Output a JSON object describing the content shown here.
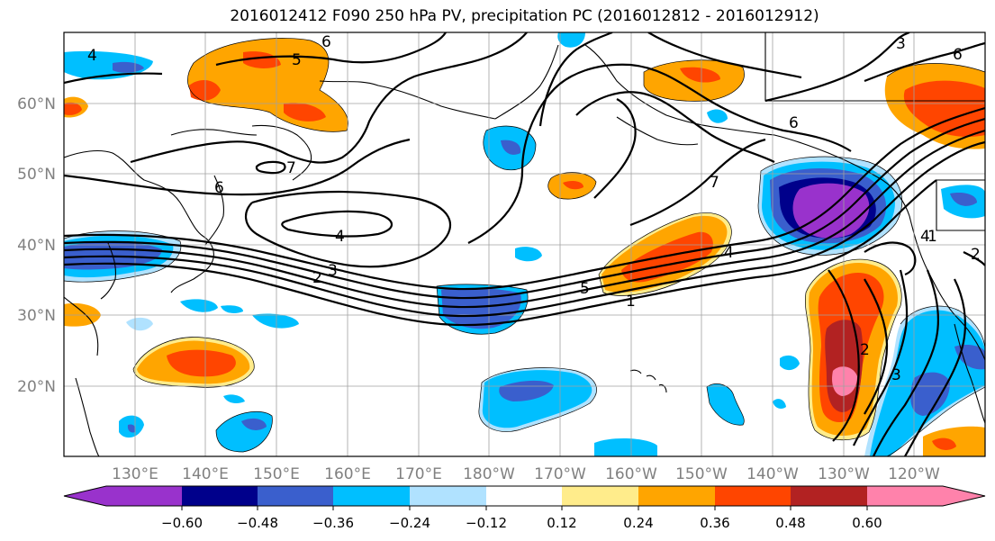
{
  "title": "2016012412 F090 250 hPa PV, precipitation PC (2016012812 - 2016012912)",
  "lat_labels": [
    "60°N",
    "50°N",
    "40°N",
    "30°N",
    "20°N"
  ],
  "lon_labels": [
    "130°E",
    "140°E",
    "150°E",
    "160°E",
    "170°E",
    "180°W",
    "170°W",
    "160°W",
    "150°W",
    "140°W",
    "130°W",
    "120°W"
  ],
  "contour_labels": [
    "4",
    "6",
    "5",
    "6",
    "7",
    "6",
    "4",
    "3",
    "2",
    "5",
    "4",
    "1",
    "7",
    "6",
    "3",
    "4",
    "2",
    "1",
    "2",
    "3"
  ],
  "colorbar": {
    "ticks": [
      "−0.60",
      "−0.48",
      "−0.36",
      "−0.24",
      "−0.12",
      "0.12",
      "0.24",
      "0.36",
      "0.48",
      "0.60"
    ],
    "colors": [
      "#9932cc",
      "#00008b",
      "#3a5fcd",
      "#00bfff",
      "#b0e2ff",
      "#ffffff",
      "#ffec8b",
      "#ffa500",
      "#ff4500",
      "#b22222",
      "#ff82ab"
    ]
  }
}
